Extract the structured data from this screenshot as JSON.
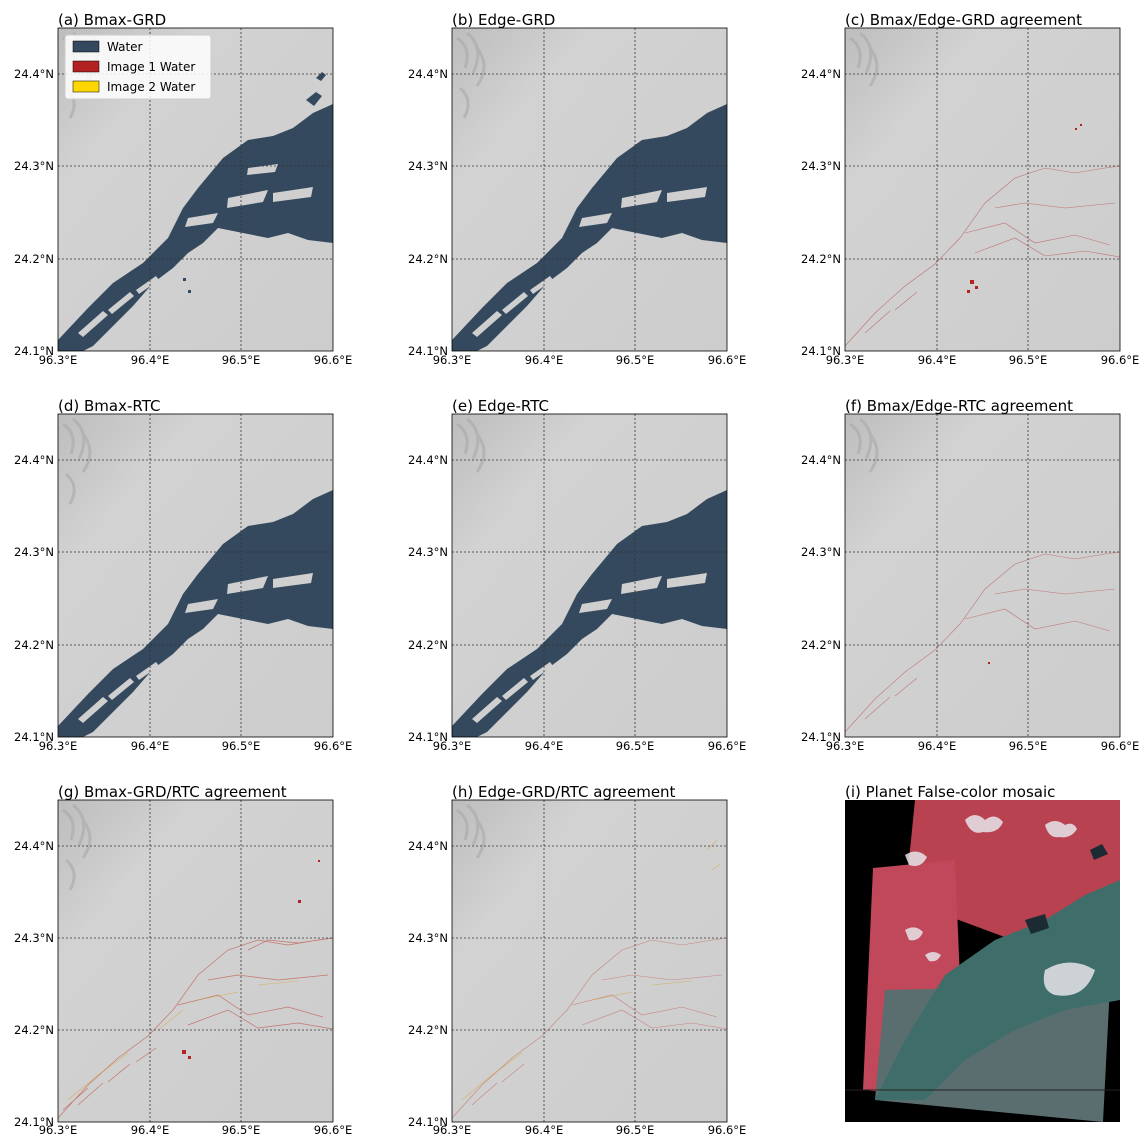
{
  "figure": {
    "legend": [
      {
        "label": "Water",
        "color": "#34495e"
      },
      {
        "label": "Image 1 Water",
        "color": "#b22222"
      },
      {
        "label": "Image 2 Water",
        "color": "#ffd700"
      }
    ],
    "lat_ticks": [
      "24.4°N",
      "24.3°N",
      "24.2°N",
      "24.1°N"
    ],
    "lon_ticks": [
      "96.3°E",
      "96.4°E",
      "96.5°E",
      "96.6°E"
    ],
    "colors": {
      "background": "#cfcfcf",
      "water": "#34495e",
      "image1_water": "#b22222",
      "image2_water": "#ffd700"
    },
    "panels": [
      {
        "id": "a",
        "title": "(a) Bmax-GRD",
        "kind": "water"
      },
      {
        "id": "b",
        "title": "(b) Edge-GRD",
        "kind": "water"
      },
      {
        "id": "c",
        "title": "(c) Bmax/Edge-GRD agreement",
        "kind": "agreement"
      },
      {
        "id": "d",
        "title": "(d) Bmax-RTC",
        "kind": "water"
      },
      {
        "id": "e",
        "title": "(e) Edge-RTC",
        "kind": "water"
      },
      {
        "id": "f",
        "title": "(f) Bmax/Edge-RTC agreement",
        "kind": "agreement"
      },
      {
        "id": "g",
        "title": "(g) Bmax-GRD/RTC agreement",
        "kind": "agreement"
      },
      {
        "id": "h",
        "title": "(h) Edge-GRD/RTC agreement",
        "kind": "agreement"
      },
      {
        "id": "i",
        "title": "(i) Planet False-color mosaic",
        "kind": "mosaic"
      }
    ]
  }
}
